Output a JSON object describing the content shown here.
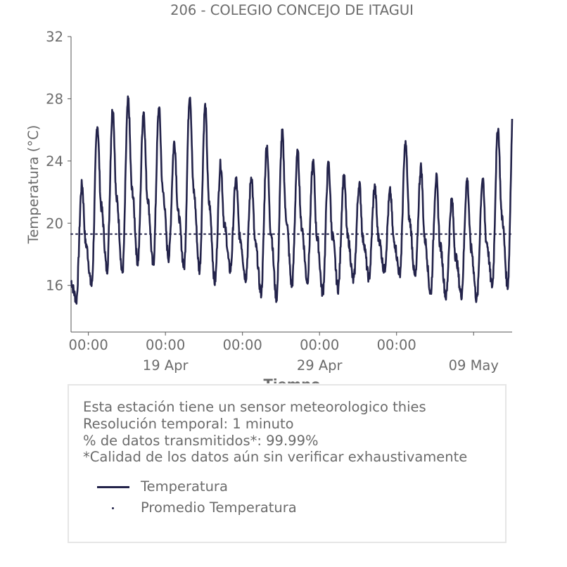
{
  "chart_data": {
    "type": "line",
    "title": "206 - COLEGIO CONCEJO DE ITAGUI",
    "xlabel": "Tiempo",
    "ylabel": "Temperatura (°C)",
    "ylim": [
      13,
      32
    ],
    "yticks": [
      16,
      20,
      24,
      28,
      32
    ],
    "xlim": [
      "2023-04-12T21:00",
      "2023-05-11T12:00"
    ],
    "xticks": [
      {
        "time": "2023-04-14T00:00",
        "label": "00:00",
        "sublabel": ""
      },
      {
        "time": "2023-04-19T00:00",
        "label": "00:00",
        "sublabel": "19 Apr"
      },
      {
        "time": "2023-04-24T00:00",
        "label": "00:00",
        "sublabel": ""
      },
      {
        "time": "2023-04-29T00:00",
        "label": "00:00",
        "sublabel": "29 Apr"
      },
      {
        "time": "2023-05-04T00:00",
        "label": "00:00",
        "sublabel": ""
      },
      {
        "time": "2023-05-09T00:00",
        "label": "",
        "sublabel": "09 May"
      }
    ],
    "grid": false,
    "series": [
      {
        "name": "Temperatura",
        "color": "#23234a",
        "daily_peaks": [
          {
            "date": "2023-04-13",
            "min": 15.0,
            "max": 22.5
          },
          {
            "date": "2023-04-14",
            "min": 16.0,
            "max": 26.3
          },
          {
            "date": "2023-04-15",
            "min": 17.0,
            "max": 27.4
          },
          {
            "date": "2023-04-16",
            "min": 16.8,
            "max": 27.9
          },
          {
            "date": "2023-04-17",
            "min": 17.5,
            "max": 27.2
          },
          {
            "date": "2023-04-18",
            "min": 17.3,
            "max": 27.4
          },
          {
            "date": "2023-04-19",
            "min": 17.8,
            "max": 25.2
          },
          {
            "date": "2023-04-20",
            "min": 17.2,
            "max": 28.3
          },
          {
            "date": "2023-04-21",
            "min": 17.0,
            "max": 27.5
          },
          {
            "date": "2023-04-22",
            "min": 16.2,
            "max": 23.8
          },
          {
            "date": "2023-04-23",
            "min": 17.0,
            "max": 22.8
          },
          {
            "date": "2023-04-24",
            "min": 16.5,
            "max": 23.0
          },
          {
            "date": "2023-04-25",
            "min": 15.5,
            "max": 25.0
          },
          {
            "date": "2023-04-26",
            "min": 15.2,
            "max": 25.8
          },
          {
            "date": "2023-04-27",
            "min": 16.0,
            "max": 24.5
          },
          {
            "date": "2023-04-28",
            "min": 16.3,
            "max": 23.9
          },
          {
            "date": "2023-04-29",
            "min": 15.5,
            "max": 23.8
          },
          {
            "date": "2023-04-30",
            "min": 15.8,
            "max": 23.0
          },
          {
            "date": "2023-05-01",
            "min": 16.3,
            "max": 22.5
          },
          {
            "date": "2023-05-02",
            "min": 16.5,
            "max": 22.3
          },
          {
            "date": "2023-05-03",
            "min": 17.0,
            "max": 22.0
          },
          {
            "date": "2023-05-04",
            "min": 16.8,
            "max": 25.1
          },
          {
            "date": "2023-05-05",
            "min": 16.5,
            "max": 23.6
          },
          {
            "date": "2023-05-06",
            "min": 15.5,
            "max": 22.9
          },
          {
            "date": "2023-05-07",
            "min": 15.3,
            "max": 21.5
          },
          {
            "date": "2023-05-08",
            "min": 15.4,
            "max": 22.8
          },
          {
            "date": "2023-05-09",
            "min": 15.1,
            "max": 22.8
          },
          {
            "date": "2023-05-10",
            "min": 16.0,
            "max": 26.1
          },
          {
            "date": "2023-05-11",
            "min": 16.0,
            "max": 27.9
          }
        ]
      },
      {
        "name": "Promedio Temperatura",
        "color": "#23234a",
        "constant_value": 19.3
      }
    ]
  },
  "info": {
    "line1": "Esta estación tiene un sensor meteorologico thies",
    "line2": "Resolución temporal: 1 minuto",
    "line3": "% de datos transmitidos*: 99.99%",
    "line4": "*Calidad de los datos aún sin verificar exhaustivamente"
  },
  "legend": {
    "item1": "Temperatura",
    "item2": "Promedio Temperatura"
  }
}
